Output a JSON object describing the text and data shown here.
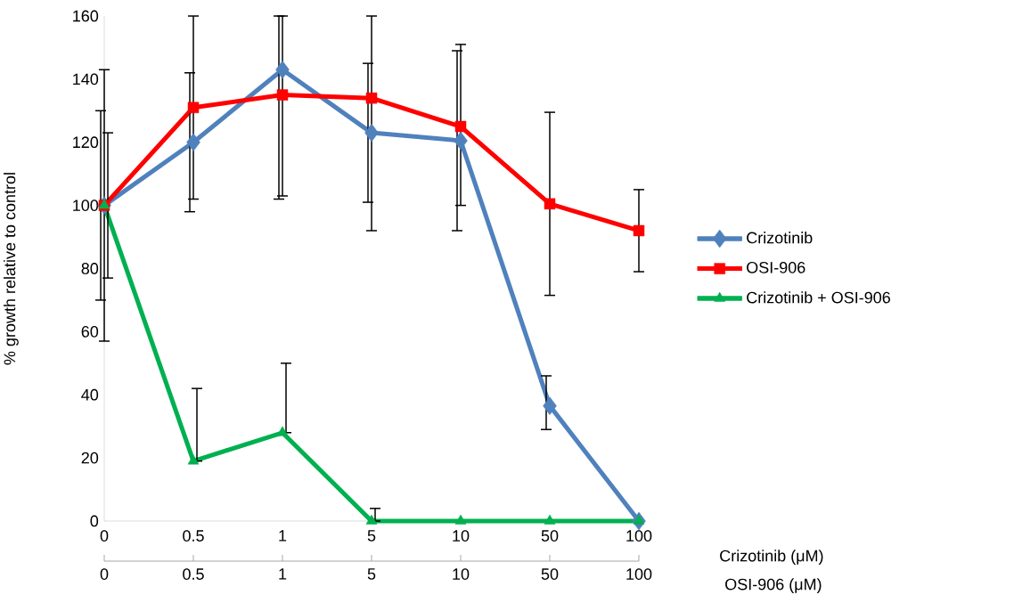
{
  "chart_data": {
    "type": "line",
    "ylabel": "% growth relative to control",
    "xlabel": "Crizotinib (μM)",
    "x2label": "OSI-906 (μM)",
    "categories": [
      "0",
      "0.5",
      "1",
      "5",
      "10",
      "50",
      "100"
    ],
    "annotations": [
      "0",
      "0.5",
      "1",
      "5",
      "10",
      "50",
      "100"
    ],
    "ylim": [
      0,
      160
    ],
    "yticks": [
      0,
      20,
      40,
      60,
      80,
      100,
      120,
      140,
      160
    ],
    "grid": false,
    "legend": "right",
    "series": [
      {
        "name": "Crizotinib",
        "color": "#4f81bd",
        "marker": "diamond",
        "values": [
          100,
          120,
          143,
          123,
          120.5,
          36.5,
          0
        ],
        "errors": [
          [
            70,
            130
          ],
          [
            98,
            142
          ],
          [
            102,
            160
          ],
          [
            101,
            145
          ],
          [
            92,
            149
          ],
          [
            29,
            46
          ],
          null
        ]
      },
      {
        "name": "OSI-906",
        "color": "#ff0000",
        "marker": "square",
        "values": [
          100,
          131,
          135,
          134,
          125,
          100.5,
          92
        ],
        "errors": [
          [
            57,
            143
          ],
          [
            102,
            160
          ],
          [
            103,
            160
          ],
          [
            92,
            160
          ],
          [
            100,
            151
          ],
          [
            71.5,
            129.5
          ],
          [
            79,
            105
          ]
        ]
      },
      {
        "name": "Crizotinib + OSI-906",
        "color": "#00b050",
        "marker": "triangle",
        "values": [
          100,
          19,
          28,
          0,
          0,
          0,
          0
        ],
        "errors": [
          [
            77,
            123
          ],
          [
            19,
            42
          ],
          [
            28,
            50
          ],
          [
            0,
            4
          ],
          null,
          null,
          null
        ]
      }
    ]
  }
}
